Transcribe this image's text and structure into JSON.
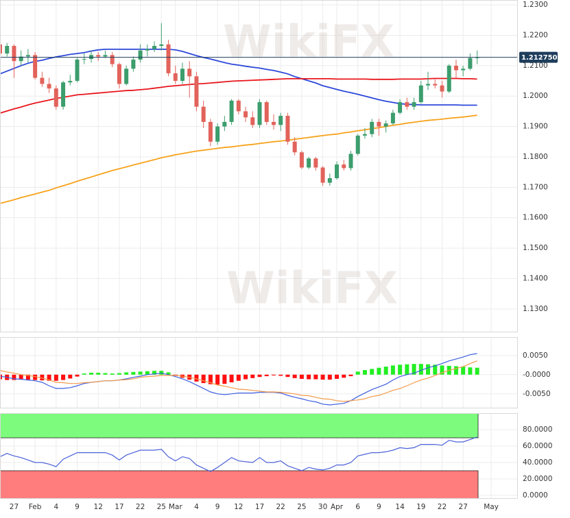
{
  "chart_data": [
    {
      "type": "candlestick",
      "watermark": "WikiFX",
      "categories": [
        null,
        null,
        "27",
        null,
        null,
        "Feb",
        null,
        null,
        "4",
        null,
        null,
        "9",
        null,
        null,
        "12",
        null,
        null,
        "17",
        null,
        null,
        "22",
        null,
        null,
        "25",
        null,
        "Mar",
        null,
        null,
        "4",
        null,
        null,
        "9",
        null,
        null,
        "12",
        null,
        null,
        "17",
        null,
        null,
        "22",
        null,
        null,
        "25",
        null,
        null,
        "30",
        null,
        "Apr",
        null,
        null,
        "6",
        null,
        null,
        "9",
        null,
        null,
        "14",
        null,
        null,
        "19",
        null,
        null,
        "22",
        null,
        null,
        "27",
        null,
        null,
        null,
        "May"
      ],
      "open": [
        1.217,
        1.214,
        1.2165,
        1.2115,
        1.213,
        1.2135,
        1.206,
        1.204,
        1.2025,
        1.1965,
        1.2045,
        1.205,
        1.212,
        1.2122,
        1.2135,
        1.213,
        1.2135,
        1.2105,
        1.204,
        1.209,
        1.212,
        1.215,
        1.2155,
        1.2165,
        1.217,
        1.2075,
        1.205,
        1.209,
        1.2065,
        1.1965,
        1.1915,
        1.185,
        1.19,
        1.1915,
        1.1985,
        1.195,
        1.193,
        1.1905,
        1.198,
        1.1915,
        1.1905,
        1.1935,
        1.185,
        1.1815,
        1.1765,
        1.1795,
        1.1765,
        1.1715,
        1.173,
        1.1775,
        1.1763,
        1.181,
        1.187,
        1.1875,
        1.1915,
        1.19,
        1.191,
        1.1945,
        1.198,
        1.1965,
        1.198,
        1.2035,
        1.204,
        1.2035,
        1.2015,
        1.21,
        1.2085,
        1.209,
        1.2125,
        null,
        null
      ],
      "high": [
        1.218,
        1.2175,
        1.217,
        1.215,
        1.2155,
        1.2145,
        1.208,
        1.206,
        1.2035,
        1.205,
        1.207,
        1.2125,
        1.214,
        1.215,
        1.2145,
        1.215,
        1.2145,
        1.211,
        1.21,
        1.213,
        1.217,
        1.217,
        1.218,
        1.224,
        1.2185,
        1.21,
        1.211,
        1.2115,
        1.208,
        1.1985,
        1.1925,
        1.191,
        1.1935,
        1.199,
        1.199,
        1.1965,
        1.195,
        1.199,
        1.1985,
        1.194,
        1.1945,
        1.1945,
        1.1865,
        1.182,
        1.18,
        1.18,
        1.177,
        1.1745,
        1.1785,
        1.179,
        1.182,
        1.1875,
        1.1895,
        1.1925,
        1.1925,
        1.192,
        1.1955,
        1.199,
        1.1995,
        1.1995,
        1.205,
        1.208,
        1.2055,
        1.205,
        1.2105,
        1.212,
        1.21,
        1.214,
        1.215,
        null,
        null
      ],
      "low": [
        1.2125,
        1.213,
        1.206,
        1.21,
        1.211,
        1.2055,
        1.203,
        1.201,
        1.1955,
        1.1955,
        1.2035,
        1.2045,
        1.2105,
        1.211,
        1.2115,
        1.2125,
        1.2095,
        1.2025,
        1.2035,
        1.208,
        1.211,
        1.213,
        1.2145,
        1.215,
        1.2065,
        1.204,
        1.204,
        1.1995,
        1.195,
        1.1895,
        1.1835,
        1.184,
        1.1885,
        1.1905,
        1.194,
        1.1915,
        1.1895,
        1.1895,
        1.1905,
        1.189,
        1.1885,
        1.184,
        1.1805,
        1.176,
        1.176,
        1.1755,
        1.1705,
        1.1705,
        1.1725,
        1.1755,
        1.1755,
        1.1805,
        1.186,
        1.1865,
        1.187,
        1.188,
        1.1905,
        1.194,
        1.1955,
        1.1955,
        1.1975,
        1.202,
        1.2025,
        1.1995,
        1.201,
        1.206,
        1.2065,
        1.2085,
        1.2105,
        null,
        null
      ],
      "close": [
        1.214,
        1.2165,
        1.2115,
        1.213,
        1.2135,
        1.206,
        1.204,
        1.2025,
        1.1965,
        1.2045,
        1.205,
        1.212,
        1.2122,
        1.2135,
        1.213,
        1.2135,
        1.2105,
        1.204,
        1.209,
        1.212,
        1.215,
        1.2155,
        1.2165,
        1.217,
        1.2075,
        1.205,
        1.209,
        1.2065,
        1.1965,
        1.1915,
        1.185,
        1.19,
        1.1915,
        1.1985,
        1.195,
        1.193,
        1.1905,
        1.198,
        1.1915,
        1.1905,
        1.1935,
        1.185,
        1.1815,
        1.1765,
        1.1795,
        1.1765,
        1.1715,
        1.173,
        1.1775,
        1.1763,
        1.181,
        1.187,
        1.1875,
        1.1915,
        1.19,
        1.191,
        1.1945,
        1.198,
        1.1965,
        1.198,
        1.2035,
        1.204,
        1.2035,
        1.2015,
        1.21,
        1.2085,
        1.209,
        1.2125,
        1.2128,
        null,
        null
      ],
      "up_color": "#3c9d6d",
      "down_color": "#e2635b",
      "series": [
        {
          "color": "#2b47d9",
          "values": [
            1.2073,
            1.2082,
            1.2091,
            1.21,
            1.2108,
            1.2114,
            1.2118,
            1.2124,
            1.2129,
            1.2133,
            1.2137,
            1.214,
            1.2143,
            1.2148,
            1.2152,
            1.2154,
            1.2154,
            1.2154,
            1.2154,
            1.2154,
            1.2154,
            1.2154,
            1.2154,
            1.2154,
            1.2154,
            1.2152,
            1.2147,
            1.214,
            1.2133,
            1.2127,
            1.2122,
            1.2116,
            1.211,
            1.2105,
            1.2102,
            1.2098,
            1.2095,
            1.2092,
            1.2088,
            1.2084,
            1.2079,
            1.2073,
            1.2064,
            1.2057,
            1.205,
            1.2043,
            1.2034,
            1.2028,
            1.2022,
            1.2016,
            1.2011,
            1.2006,
            1.2,
            1.1994,
            1.1988,
            1.1983,
            1.1979,
            1.1975,
            1.1973,
            1.1972,
            1.1971,
            1.1971,
            1.1971,
            1.1971,
            1.1971,
            1.1971,
            1.197,
            1.197,
            1.197,
            null,
            null
          ]
        },
        {
          "color": "#e8151b",
          "values": [
            1.1944,
            1.1951,
            1.1958,
            1.1964,
            1.1971,
            1.1977,
            1.1982,
            1.1987,
            1.1992,
            1.1996,
            1.2,
            1.2004,
            1.2006,
            1.2008,
            1.201,
            1.2012,
            1.2014,
            1.2016,
            1.2018,
            1.2019,
            1.2021,
            1.2023,
            1.2026,
            1.2029,
            1.2032,
            1.2034,
            1.2036,
            1.2038,
            1.204,
            1.2041,
            1.2043,
            1.2045,
            1.2047,
            1.2049,
            1.205,
            1.2051,
            1.2052,
            1.2053,
            1.2054,
            1.2055,
            1.2056,
            1.2057,
            1.2057,
            1.2057,
            1.2057,
            1.2057,
            1.2057,
            1.2057,
            1.2056,
            1.2056,
            1.2056,
            1.2056,
            1.2056,
            1.2055,
            1.2055,
            1.2055,
            1.2055,
            1.2056,
            1.2056,
            1.2056,
            1.2056,
            1.2057,
            1.2058,
            1.2058,
            1.2058,
            1.2058,
            1.2057,
            1.2057,
            1.2056,
            null,
            null
          ]
        },
        {
          "color": "#f7a21b",
          "values": [
            1.1647,
            1.1653,
            1.1659,
            1.1666,
            1.1672,
            1.1678,
            1.1684,
            1.169,
            1.1698,
            1.1705,
            1.1712,
            1.172,
            1.1727,
            1.1734,
            1.1741,
            1.1748,
            1.1755,
            1.1761,
            1.1767,
            1.1773,
            1.1779,
            1.1785,
            1.1791,
            1.1797,
            1.1802,
            1.1807,
            1.1811,
            1.1815,
            1.1819,
            1.1822,
            1.1825,
            1.1828,
            1.1831,
            1.1833,
            1.1836,
            1.1839,
            1.1841,
            1.1844,
            1.1847,
            1.185,
            1.1852,
            1.1855,
            1.1858,
            1.1861,
            1.1864,
            1.1867,
            1.187,
            1.1873,
            1.1875,
            1.1879,
            1.1882,
            1.1886,
            1.1889,
            1.1893,
            1.1896,
            1.19,
            1.1904,
            1.1907,
            1.1911,
            1.1914,
            1.1917,
            1.192,
            1.1922,
            1.1924,
            1.1927,
            1.1929,
            1.1931,
            1.1934,
            1.1937,
            null,
            null
          ]
        }
      ],
      "ylim": [
        1.1223,
        1.2316
      ],
      "yticks": [
        {
          "value": 1.23,
          "label": "1.2300"
        },
        {
          "value": 1.22,
          "label": "1.2200"
        },
        {
          "value": 1.21,
          "label": "1.2100"
        },
        {
          "value": 1.2,
          "label": "1.2000"
        },
        {
          "value": 1.19,
          "label": "1.1900"
        },
        {
          "value": 1.18,
          "label": "1.1800"
        },
        {
          "value": 1.17,
          "label": "1.1700"
        },
        {
          "value": 1.16,
          "label": "1.1600"
        },
        {
          "value": 1.15,
          "label": "1.1500"
        },
        {
          "value": 1.14,
          "label": "1.1400"
        },
        {
          "value": 1.13,
          "label": "1.1300"
        }
      ],
      "grid": true,
      "last_price": {
        "value": 1.21275,
        "label": "1.212750"
      }
    },
    {
      "type": "macd",
      "histogram": {
        "positive_color": "#22ee22",
        "negative_color": "#ff1010",
        "values": [
          -0.0012,
          -0.0014,
          -0.0014,
          -0.0013,
          -0.0013,
          -0.0014,
          -0.0015,
          -0.0016,
          -0.0016,
          -0.0014,
          -0.001,
          -0.0005,
          0.0003,
          0.0005,
          0.0005,
          0.0004,
          0.0003,
          0.0004,
          0.0006,
          0.0007,
          0.0008,
          0.0009,
          0.001,
          0.001,
          0.0006,
          -0.0003,
          -0.0008,
          -0.0013,
          -0.0018,
          -0.0022,
          -0.0025,
          -0.0026,
          -0.0024,
          -0.002,
          -0.0016,
          -0.0012,
          -0.0009,
          -0.0006,
          -0.0004,
          -0.0002,
          -0.0003,
          -0.0006,
          -0.0009,
          -0.0011,
          -0.0012,
          -0.0012,
          -0.0013,
          -0.0013,
          -0.0011,
          -0.0008,
          -0.0004,
          0.0008,
          0.0012,
          0.0015,
          0.0018,
          0.0021,
          0.0024,
          0.0026,
          0.0027,
          0.0028,
          0.0028,
          0.0027,
          0.0026,
          0.0024,
          0.0023,
          0.0022,
          0.0021,
          0.0019,
          0.0018,
          null,
          null
        ]
      },
      "series": [
        {
          "color": "#3f5fe0",
          "values": [
            -0.0004,
            -0.0007,
            -0.0011,
            -0.0012,
            -0.0014,
            -0.0016,
            -0.002,
            -0.0029,
            -0.0036,
            -0.0036,
            -0.0034,
            -0.0029,
            -0.0023,
            -0.002,
            -0.0018,
            -0.0016,
            -0.0016,
            -0.0014,
            -0.0011,
            -0.0007,
            -0.0004,
            0.0,
            0.0002,
            0.0004,
            0.0,
            -0.0005,
            -0.0011,
            -0.0018,
            -0.0027,
            -0.0036,
            -0.0045,
            -0.005,
            -0.0052,
            -0.005,
            -0.0048,
            -0.0048,
            -0.0048,
            -0.0046,
            -0.0046,
            -0.0046,
            -0.0048,
            -0.0054,
            -0.0059,
            -0.0063,
            -0.0068,
            -0.0071,
            -0.0077,
            -0.0079,
            -0.0077,
            -0.0075,
            -0.0068,
            -0.0057,
            -0.0048,
            -0.0039,
            -0.0032,
            -0.0025,
            -0.0014,
            -0.0005,
            0.0,
            0.0004,
            0.0011,
            0.0018,
            0.0023,
            0.0029,
            0.0036,
            0.0041,
            0.0046,
            0.0052,
            0.0055,
            null,
            null
          ]
        },
        {
          "color": "#f29a4a",
          "values": [
            0.0011,
            0.0007,
            0.0004,
            0.0,
            -0.0002,
            -0.0005,
            -0.0009,
            -0.0014,
            -0.002,
            -0.0021,
            -0.0023,
            -0.0023,
            -0.0021,
            -0.002,
            -0.0018,
            -0.0016,
            -0.0016,
            -0.0014,
            -0.0013,
            -0.0011,
            -0.0007,
            -0.0005,
            -0.0004,
            -0.0002,
            -0.0002,
            -0.0002,
            -0.0004,
            -0.0007,
            -0.0011,
            -0.0016,
            -0.0021,
            -0.0027,
            -0.003,
            -0.0034,
            -0.0038,
            -0.0039,
            -0.0041,
            -0.0043,
            -0.0045,
            -0.0045,
            -0.0046,
            -0.0048,
            -0.005,
            -0.0054,
            -0.0055,
            -0.0059,
            -0.0063,
            -0.0064,
            -0.0068,
            -0.007,
            -0.0068,
            -0.0066,
            -0.0063,
            -0.0057,
            -0.0054,
            -0.0048,
            -0.0041,
            -0.0036,
            -0.0029,
            -0.0021,
            -0.0014,
            -0.0009,
            -0.0002,
            0.0005,
            0.0011,
            0.0016,
            0.0021,
            0.0029,
            0.0036,
            null,
            null
          ]
        }
      ],
      "ylim": [
        -0.0088,
        0.0098
      ],
      "yticks": [
        {
          "value": 0.005,
          "label": "0.0050"
        },
        {
          "value": 0,
          "label": "-0.0000"
        },
        {
          "value": -0.005,
          "label": "-0.0050"
        }
      ],
      "grid": true
    },
    {
      "type": "line",
      "series": [
        {
          "color": "#4a60d8",
          "values": [
            47,
            51,
            48,
            46,
            43,
            40,
            40,
            38,
            35,
            44,
            48,
            52,
            52,
            52,
            52,
            52,
            49,
            43,
            49,
            52,
            55,
            55,
            55,
            56,
            47,
            42,
            47,
            45,
            37,
            33,
            29,
            34,
            40,
            46,
            42,
            41,
            40,
            46,
            40,
            40,
            42,
            36,
            33,
            30,
            34,
            32,
            31,
            33,
            37,
            37,
            40,
            48,
            50,
            52,
            52,
            53,
            55,
            58,
            57,
            58,
            62,
            62,
            62,
            61,
            67,
            65,
            65,
            68,
            71,
            null,
            null
          ]
        }
      ],
      "zones": [
        {
          "range": [
            70,
            100
          ],
          "color": "#7dfb7d"
        },
        {
          "range": [
            0,
            30
          ],
          "color": "#ff7d7d"
        }
      ],
      "ylim": [
        0,
        100
      ],
      "yticks": [
        {
          "value": 80,
          "label": "80.0000"
        },
        {
          "value": 60,
          "label": "60.0000"
        },
        {
          "value": 40,
          "label": "40.0000"
        },
        {
          "value": 20,
          "label": "20.0000"
        },
        {
          "value": 0,
          "label": "0.0000"
        }
      ],
      "grid": true
    }
  ]
}
